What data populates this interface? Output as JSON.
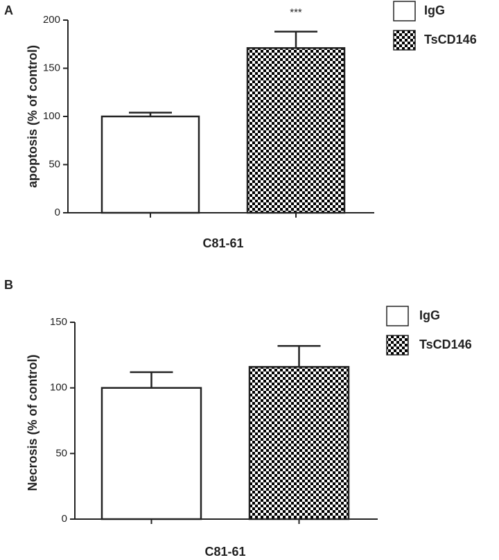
{
  "chart_data": [
    {
      "type": "bar",
      "panel_label": "A",
      "ylabel": "apoptosis (% of control)",
      "categories": [
        "C81-61"
      ],
      "ylim": [
        0,
        200
      ],
      "yticks": [
        0,
        50,
        100,
        150,
        200
      ],
      "series": [
        {
          "name": "IgG",
          "color": "#ffffff",
          "pattern": "solid",
          "values": [
            100
          ],
          "errors": [
            4
          ]
        },
        {
          "name": "TsCD146",
          "color": "#000000",
          "pattern": "checker",
          "values": [
            171
          ],
          "errors": [
            17
          ],
          "annotation": "***"
        }
      ]
    },
    {
      "type": "bar",
      "panel_label": "B",
      "ylabel": "Necrosis (% of control)",
      "categories": [
        "C81-61"
      ],
      "ylim": [
        0,
        150
      ],
      "yticks": [
        0,
        50,
        100,
        150
      ],
      "series": [
        {
          "name": "IgG",
          "color": "#ffffff",
          "pattern": "solid",
          "values": [
            100
          ],
          "errors": [
            12
          ]
        },
        {
          "name": "TsCD146",
          "color": "#000000",
          "pattern": "checker",
          "values": [
            116
          ],
          "errors": [
            16
          ]
        }
      ]
    }
  ]
}
